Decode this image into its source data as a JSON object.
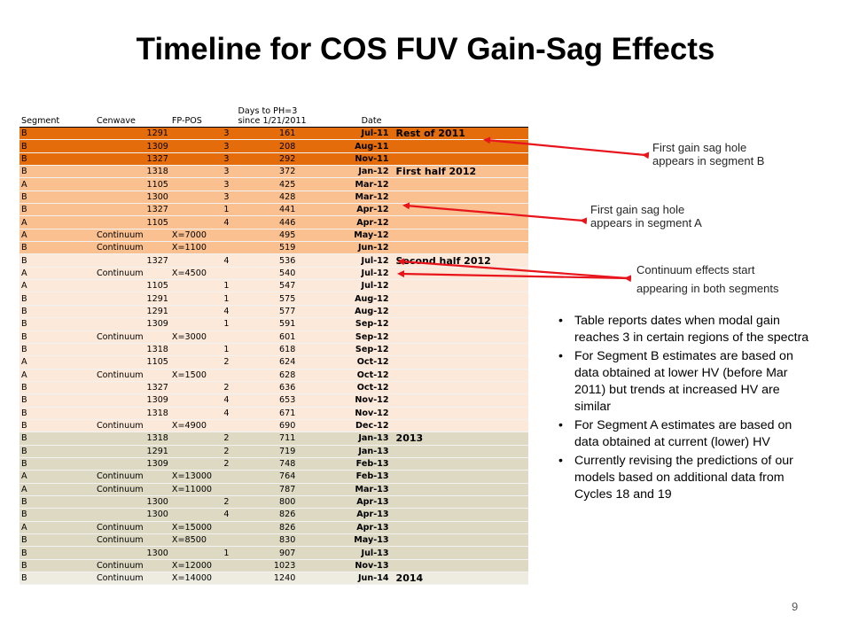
{
  "title": "Timeline for COS FUV Gain-Sag Effects",
  "table": {
    "headers": {
      "segment": "Segment",
      "cenwave": "Cenwave",
      "fppos": "FP-POS",
      "days_line1": "Days to PH=3",
      "days_line2": "since 1/21/2011",
      "date": "Date"
    },
    "rows": [
      {
        "seg": "B",
        "cen": "1291",
        "fp": "3",
        "days": "161",
        "date": "Jul-11",
        "note": "Rest of 2011",
        "group": "rest"
      },
      {
        "seg": "B",
        "cen": "1309",
        "fp": "3",
        "days": "208",
        "date": "Aug-11",
        "note": "",
        "group": "rest"
      },
      {
        "seg": "B",
        "cen": "1327",
        "fp": "3",
        "days": "292",
        "date": "Nov-11",
        "note": "",
        "group": "rest"
      },
      {
        "seg": "B",
        "cen": "1318",
        "fp": "3",
        "days": "372",
        "date": "Jan-12",
        "note": "First half 2012",
        "group": "h1"
      },
      {
        "seg": "A",
        "cen": "1105",
        "fp": "3",
        "days": "425",
        "date": "Mar-12",
        "note": "",
        "group": "h1"
      },
      {
        "seg": "B",
        "cen": "1300",
        "fp": "3",
        "days": "428",
        "date": "Mar-12",
        "note": "",
        "group": "h1"
      },
      {
        "seg": "B",
        "cen": "1327",
        "fp": "1",
        "days": "441",
        "date": "Apr-12",
        "note": "",
        "group": "h1"
      },
      {
        "seg": "A",
        "cen": "1105",
        "fp": "4",
        "days": "446",
        "date": "Apr-12",
        "note": "",
        "group": "h1"
      },
      {
        "seg": "A",
        "cen": "Continuum",
        "fp": "X=7000",
        "days": "495",
        "date": "May-12",
        "note": "",
        "group": "h1"
      },
      {
        "seg": "B",
        "cen": "Continuum",
        "fp": "X=1100",
        "days": "519",
        "date": "Jun-12",
        "note": "",
        "group": "h1"
      },
      {
        "seg": "B",
        "cen": "1327",
        "fp": "4",
        "days": "536",
        "date": "Jul-12",
        "note": "Second half 2012",
        "group": "h2"
      },
      {
        "seg": "A",
        "cen": "Continuum",
        "fp": "X=4500",
        "days": "540",
        "date": "Jul-12",
        "note": "",
        "group": "h2"
      },
      {
        "seg": "A",
        "cen": "1105",
        "fp": "1",
        "days": "547",
        "date": "Jul-12",
        "note": "",
        "group": "h2"
      },
      {
        "seg": "B",
        "cen": "1291",
        "fp": "1",
        "days": "575",
        "date": "Aug-12",
        "note": "",
        "group": "h2"
      },
      {
        "seg": "B",
        "cen": "1291",
        "fp": "4",
        "days": "577",
        "date": "Aug-12",
        "note": "",
        "group": "h2"
      },
      {
        "seg": "B",
        "cen": "1309",
        "fp": "1",
        "days": "591",
        "date": "Sep-12",
        "note": "",
        "group": "h2"
      },
      {
        "seg": "B",
        "cen": "Continuum",
        "fp": "X=3000",
        "days": "601",
        "date": "Sep-12",
        "note": "",
        "group": "h2"
      },
      {
        "seg": "B",
        "cen": "1318",
        "fp": "1",
        "days": "618",
        "date": "Sep-12",
        "note": "",
        "group": "h2"
      },
      {
        "seg": "A",
        "cen": "1105",
        "fp": "2",
        "days": "624",
        "date": "Oct-12",
        "note": "",
        "group": "h2"
      },
      {
        "seg": "A",
        "cen": "Continuum",
        "fp": "X=1500",
        "days": "628",
        "date": "Oct-12",
        "note": "",
        "group": "h2"
      },
      {
        "seg": "B",
        "cen": "1327",
        "fp": "2",
        "days": "636",
        "date": "Oct-12",
        "note": "",
        "group": "h2"
      },
      {
        "seg": "B",
        "cen": "1309",
        "fp": "4",
        "days": "653",
        "date": "Nov-12",
        "note": "",
        "group": "h2"
      },
      {
        "seg": "B",
        "cen": "1318",
        "fp": "4",
        "days": "671",
        "date": "Nov-12",
        "note": "",
        "group": "h2"
      },
      {
        "seg": "B",
        "cen": "Continuum",
        "fp": "X=4900",
        "days": "690",
        "date": "Dec-12",
        "note": "",
        "group": "h2"
      },
      {
        "seg": "B",
        "cen": "1318",
        "fp": "2",
        "days": "711",
        "date": "Jan-13",
        "note": "2013",
        "group": "2013"
      },
      {
        "seg": "B",
        "cen": "1291",
        "fp": "2",
        "days": "719",
        "date": "Jan-13",
        "note": "",
        "group": "2013"
      },
      {
        "seg": "B",
        "cen": "1309",
        "fp": "2",
        "days": "748",
        "date": "Feb-13",
        "note": "",
        "group": "2013"
      },
      {
        "seg": "A",
        "cen": "Continuum",
        "fp": "X=13000",
        "days": "764",
        "date": "Feb-13",
        "note": "",
        "group": "2013"
      },
      {
        "seg": "A",
        "cen": "Continuum",
        "fp": "X=11000",
        "days": "787",
        "date": "Mar-13",
        "note": "",
        "group": "2013"
      },
      {
        "seg": "B",
        "cen": "1300",
        "fp": "2",
        "days": "800",
        "date": "Apr-13",
        "note": "",
        "group": "2013"
      },
      {
        "seg": "B",
        "cen": "1300",
        "fp": "4",
        "days": "826",
        "date": "Apr-13",
        "note": "",
        "group": "2013"
      },
      {
        "seg": "A",
        "cen": "Continuum",
        "fp": "X=15000",
        "days": "826",
        "date": "Apr-13",
        "note": "",
        "group": "2013"
      },
      {
        "seg": "B",
        "cen": "Continuum",
        "fp": "X=8500",
        "days": "830",
        "date": "May-13",
        "note": "",
        "group": "2013"
      },
      {
        "seg": "B",
        "cen": "1300",
        "fp": "1",
        "days": "907",
        "date": "Jul-13",
        "note": "",
        "group": "2013"
      },
      {
        "seg": "B",
        "cen": "Continuum",
        "fp": "X=12000",
        "days": "1023",
        "date": "Nov-13",
        "note": "",
        "group": "2013"
      },
      {
        "seg": "B",
        "cen": "Continuum",
        "fp": "X=14000",
        "days": "1240",
        "date": "Jun-14",
        "note": "2014",
        "group": "2014"
      }
    ]
  },
  "annotations": {
    "seg_b": {
      "line1": "First gain sag hole",
      "line2": "appears  in segment B"
    },
    "seg_a": {
      "line1": "First gain sag hole",
      "line2": "appears  in segment A"
    },
    "continuum": {
      "line1": "Continuum  effects start",
      "line2": "appearing  in both segments"
    }
  },
  "bullets": [
    "Table reports dates when modal gain reaches 3 in certain regions of the spectra",
    "For Segment B estimates are based on data obtained at lower HV (before Mar 2011) but trends at increased HV are similar",
    "For Segment A estimates are based on data obtained at current (lower) HV",
    "Currently revising the predictions of our models based on additional data from Cycles 18 and 19"
  ],
  "bullet_glyph": "•",
  "page_number": "9",
  "colors": {
    "rest_of_2011": "#e46c0a",
    "first_half_2012": "#fac090",
    "second_half_2012": "#fde9d9",
    "year_2013": "#ddd9c3",
    "year_2014": "#eeece1",
    "arrow": "#e8141c"
  }
}
